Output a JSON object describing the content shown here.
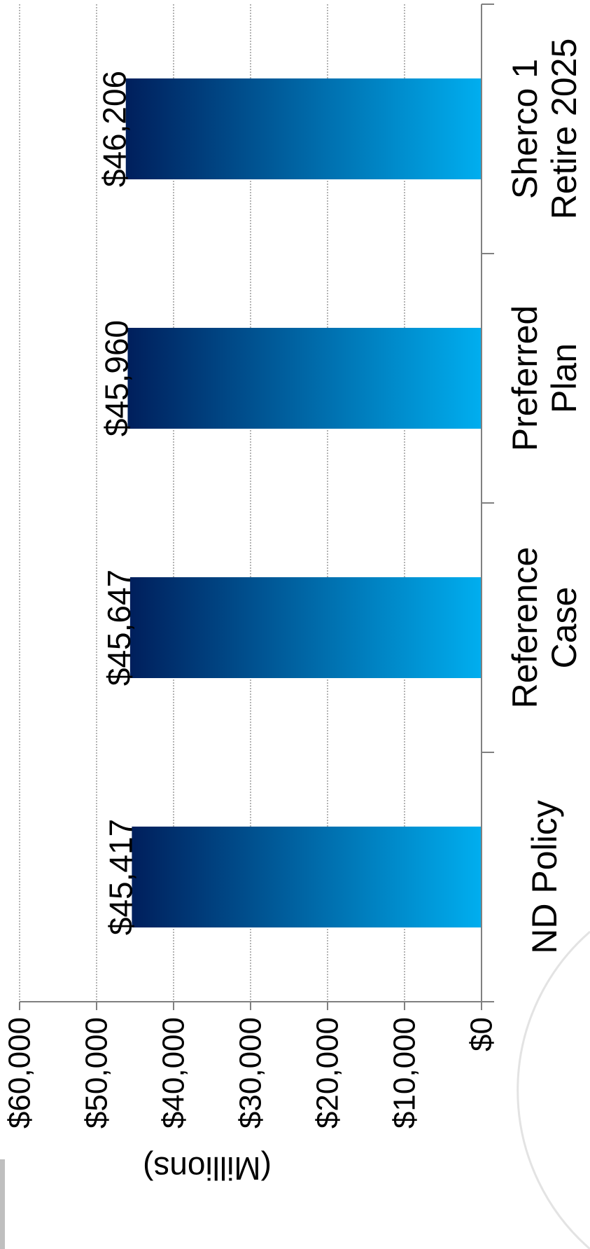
{
  "chart_data": {
    "type": "bar",
    "orientation": "rotated-90-clockwise",
    "title": "",
    "xlabel": "",
    "ylabel": "(Millions)",
    "categories": [
      [
        "ND Policy"
      ],
      [
        "Reference",
        "Case"
      ],
      [
        "Preferred",
        "Plan"
      ],
      [
        "Sherco 1",
        "Retire 2025"
      ]
    ],
    "values": [
      45417,
      45647,
      45960,
      46206
    ],
    "data_labels": [
      "$45,417",
      "$45,647",
      "$45,960",
      "$46,206"
    ],
    "ylim": [
      0,
      60000
    ],
    "ytick_values": [
      0,
      10000,
      20000,
      30000,
      40000,
      50000,
      60000
    ],
    "ytick_labels": [
      "$0",
      "$10,000",
      "$20,000",
      "$30,000",
      "$40,000",
      "$50,000",
      "$60,000"
    ],
    "grid": true,
    "bar_gradient": [
      "#001f5c",
      "#00aeef"
    ],
    "axis_color": "#808080",
    "grid_color": "#8c8c8c"
  }
}
